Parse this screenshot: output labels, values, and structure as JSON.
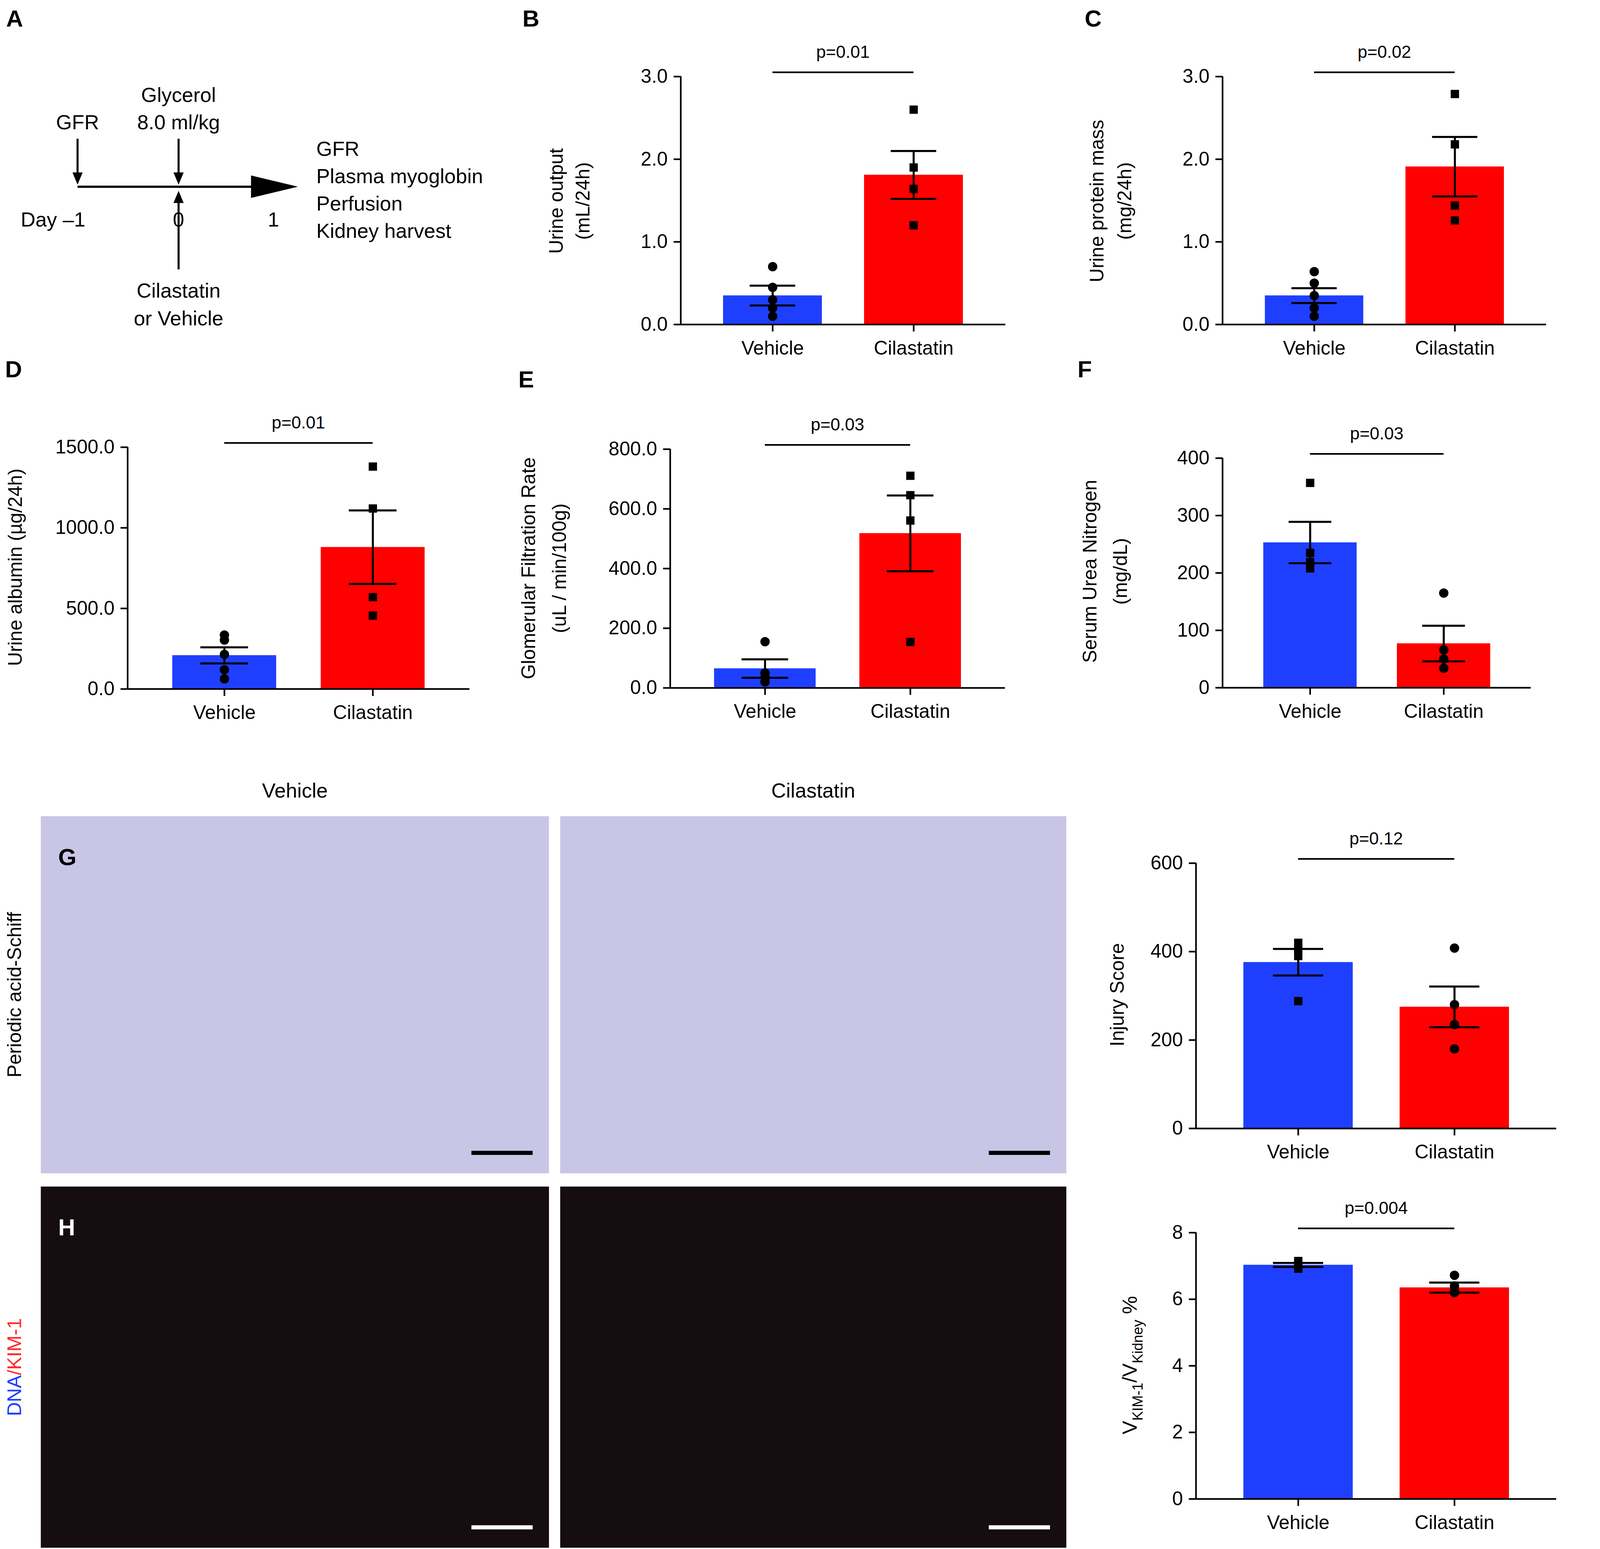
{
  "chart_data": [
    {
      "panel": "B",
      "type": "bar",
      "categories": [
        "Vehicle",
        "Cilastatin"
      ],
      "values": [
        0.35,
        1.81
      ],
      "errors": [
        0.12,
        0.29
      ],
      "colors": [
        "#1f3fff",
        "#ff0000"
      ],
      "points": [
        {
          "category": "Vehicle",
          "marker": "circle",
          "values": [
            0.7,
            0.45,
            0.3,
            0.2,
            0.1
          ]
        },
        {
          "category": "Cilastatin",
          "marker": "square",
          "values": [
            2.6,
            1.9,
            1.64,
            1.2
          ]
        }
      ],
      "ylabel": [
        "Urine output",
        "(mL/24h)"
      ],
      "ylim": [
        0,
        3
      ],
      "yticks": [
        {
          "value": 0,
          "label": "0.0"
        },
        {
          "value": 1,
          "label": "1.0"
        },
        {
          "value": 2,
          "label": "2.0"
        },
        {
          "value": 3,
          "label": "3.0"
        }
      ],
      "annotation": {
        "text": "p=0.01",
        "between": [
          "Vehicle",
          "Cilastatin"
        ]
      }
    },
    {
      "panel": "C",
      "type": "bar",
      "categories": [
        "Vehicle",
        "Cilastatin"
      ],
      "values": [
        0.35,
        1.91
      ],
      "errors": [
        0.09,
        0.36
      ],
      "colors": [
        "#1f3fff",
        "#ff0000"
      ],
      "points": [
        {
          "category": "Vehicle",
          "marker": "circle",
          "values": [
            0.64,
            0.5,
            0.35,
            0.2,
            0.1
          ]
        },
        {
          "category": "Cilastatin",
          "marker": "square",
          "values": [
            2.79,
            2.18,
            1.44,
            1.26
          ]
        }
      ],
      "ylabel": [
        "Urine protein mass",
        "(mg/24h)"
      ],
      "ylim": [
        0,
        3
      ],
      "yticks": [
        {
          "value": 0,
          "label": "0.0"
        },
        {
          "value": 1,
          "label": "1.0"
        },
        {
          "value": 2,
          "label": "2.0"
        },
        {
          "value": 3,
          "label": "3.0"
        }
      ],
      "annotation": {
        "text": "p=0.02",
        "between": [
          "Vehicle",
          "Cilastatin"
        ]
      }
    },
    {
      "panel": "D",
      "type": "bar",
      "categories": [
        "Vehicle",
        "Cilastatin"
      ],
      "values": [
        209,
        880
      ],
      "errors": [
        50,
        228
      ],
      "colors": [
        "#1f3fff",
        "#ff0000"
      ],
      "points": [
        {
          "category": "Vehicle",
          "marker": "circle",
          "values": [
            335,
            304,
            215,
            120,
            63
          ]
        },
        {
          "category": "Cilastatin",
          "marker": "square",
          "values": [
            1380,
            1120,
            570,
            456
          ]
        }
      ],
      "ylabel": [
        "Urine albumin (µg/24h)"
      ],
      "ylim": [
        0,
        1500
      ],
      "yticks": [
        {
          "value": 0,
          "label": "0.0"
        },
        {
          "value": 500,
          "label": "500.0"
        },
        {
          "value": 1000,
          "label": "1000.0"
        },
        {
          "value": 1500,
          "label": "1500.0"
        }
      ],
      "annotation": {
        "text": "p=0.01",
        "between": [
          "Vehicle",
          "Cilastatin"
        ]
      }
    },
    {
      "panel": "E",
      "type": "bar",
      "categories": [
        "Vehicle",
        "Cilastatin"
      ],
      "values": [
        65,
        518
      ],
      "errors": [
        31,
        127
      ],
      "colors": [
        "#1f3fff",
        "#ff0000"
      ],
      "points": [
        {
          "category": "Vehicle",
          "marker": "circle",
          "values": [
            155,
            50,
            35,
            20
          ]
        },
        {
          "category": "Cilastatin",
          "marker": "square",
          "values": [
            711,
            646,
            561,
            154
          ]
        }
      ],
      "ylabel": [
        "Glomerular Filtration Rate",
        "(uL / min/100g)"
      ],
      "ylim": [
        0,
        800
      ],
      "yticks": [
        {
          "value": 0,
          "label": "0.0"
        },
        {
          "value": 200,
          "label": "200.0"
        },
        {
          "value": 400,
          "label": "400.0"
        },
        {
          "value": 600,
          "label": "600.0"
        },
        {
          "value": 800,
          "label": "800.0"
        }
      ],
      "annotation": {
        "text": "p=0.03",
        "between": [
          "Vehicle",
          "Cilastatin"
        ]
      }
    },
    {
      "panel": "F",
      "type": "bar",
      "categories": [
        "Vehicle",
        "Cilastatin"
      ],
      "values": [
        253,
        77
      ],
      "errors": [
        36,
        31
      ],
      "colors": [
        "#1f3fff",
        "#ff0000"
      ],
      "points": [
        {
          "category": "Vehicle",
          "marker": "square",
          "values": [
            357,
            235,
            219,
            208
          ]
        },
        {
          "category": "Cilastatin",
          "marker": "circle",
          "values": [
            165,
            66,
            50,
            34
          ]
        }
      ],
      "ylabel": [
        "Serum Urea Nitrogen",
        "(mg/dL)"
      ],
      "ylim": [
        0,
        400
      ],
      "yticks": [
        0,
        100,
        200,
        300,
        400
      ],
      "annotation": {
        "text": "p=0.03",
        "between": [
          "Vehicle",
          "Cilastatin"
        ]
      }
    },
    {
      "type": "bar",
      "categories": [
        "Vehicle",
        "Cilastatin"
      ],
      "values": [
        376,
        275
      ],
      "errors": [
        30,
        46
      ],
      "colors": [
        "#1f3fff",
        "#ff0000"
      ],
      "points": [
        {
          "category": "Vehicle",
          "marker": "square",
          "values": [
            420,
            404,
            390,
            288
          ]
        },
        {
          "category": "Cilastatin",
          "marker": "circle",
          "values": [
            408,
            280,
            235,
            180
          ]
        }
      ],
      "ylabel": [
        "Injury Score"
      ],
      "ylim": [
        0,
        600
      ],
      "yticks": [
        0,
        200,
        400,
        600
      ],
      "annotation": {
        "text": "p=0.12",
        "between": [
          "Vehicle",
          "Cilastatin"
        ]
      }
    },
    {
      "type": "bar",
      "categories": [
        "Vehicle",
        "Cilastatin"
      ],
      "values": [
        7.03,
        6.35
      ],
      "errors": [
        0.06,
        0.15
      ],
      "colors": [
        "#1f3fff",
        "#ff0000"
      ],
      "points": [
        {
          "category": "Vehicle",
          "marker": "square",
          "values": [
            7.15,
            7.0,
            7.05,
            6.92
          ]
        },
        {
          "category": "Cilastatin",
          "marker": "circle",
          "values": [
            6.72,
            6.4,
            6.25,
            6.2
          ]
        }
      ],
      "ylabel": [
        [
          {
            "text": "V"
          },
          {
            "text": "KIM-1",
            "sub": true
          },
          {
            "text": "/V"
          },
          {
            "text": "Kidney",
            "sub": true
          },
          {
            "text": " %"
          }
        ]
      ],
      "ylim": [
        0,
        8
      ],
      "yticks": [
        0,
        2,
        4,
        6,
        8
      ],
      "annotation": {
        "text": "p=0.004",
        "between": [
          "Vehicle",
          "Cilastatin"
        ]
      }
    }
  ],
  "diagram": {
    "panel": "A",
    "timeline": [
      "Day –1",
      "0",
      "1"
    ],
    "above": [
      {
        "at": 0,
        "lines": [
          "GFR"
        ]
      },
      {
        "at": 1,
        "lines": [
          "Glycerol",
          "8.0 ml/kg"
        ]
      }
    ],
    "below": [
      {
        "at": 1,
        "lines": [
          "Cilastatin",
          "or Vehicle"
        ]
      }
    ],
    "outcomes": [
      "GFR",
      "Plasma myoglobin",
      "Perfusion",
      "Kidney harvest"
    ]
  },
  "micrographs": {
    "columns": [
      "Vehicle",
      "Cilastatin"
    ],
    "rows": [
      {
        "panel": "G",
        "label": [
          {
            "text": "Periodic acid-Schiff",
            "color": "#000000"
          }
        ]
      },
      {
        "panel": "H",
        "label": [
          {
            "text": "DNA",
            "color": "#1f3fff"
          },
          {
            "text": "/KIM-1",
            "color": "#ff2a2a"
          }
        ]
      }
    ]
  }
}
